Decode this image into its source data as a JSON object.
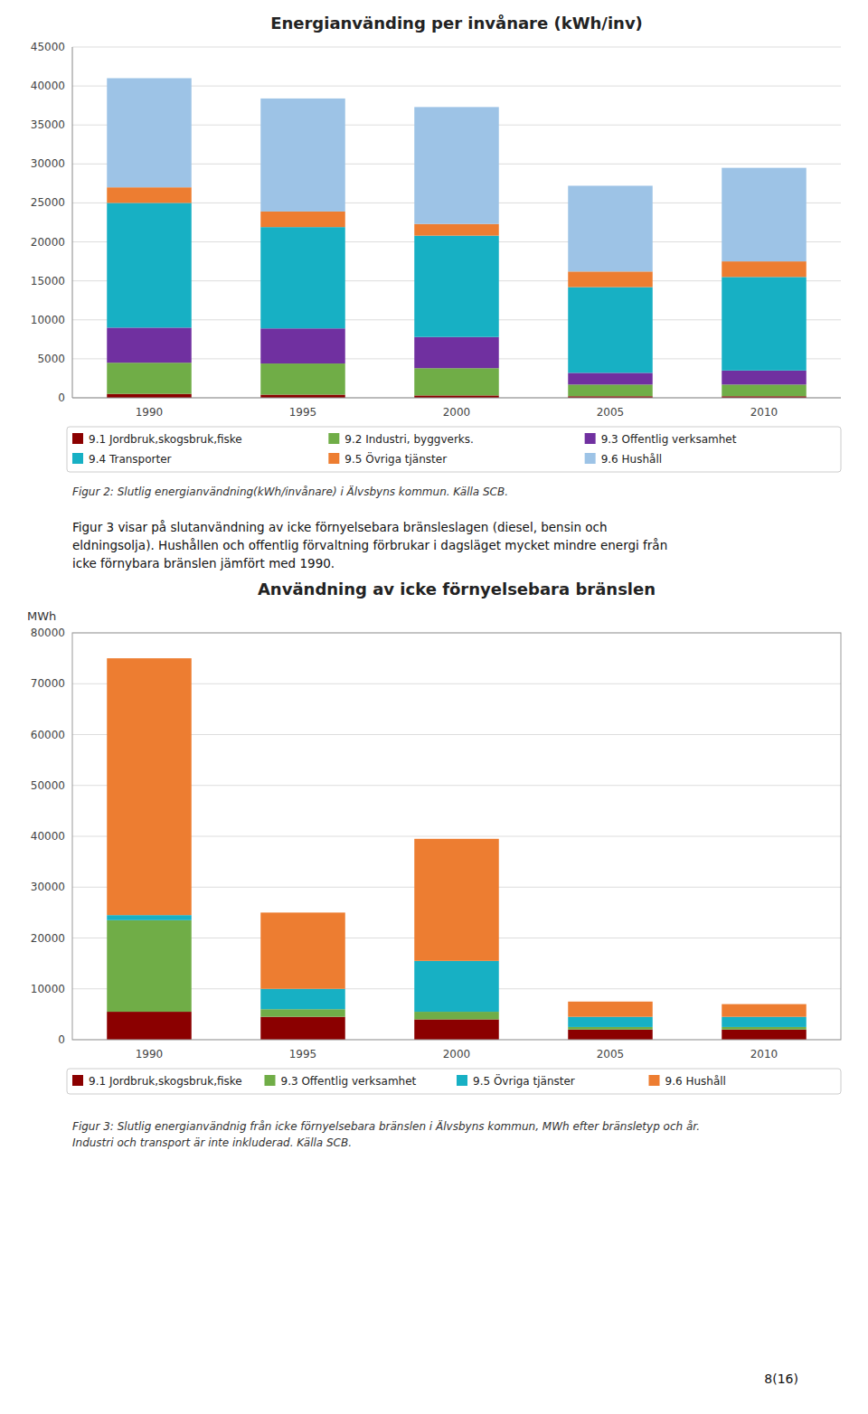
{
  "chart_data": [
    {
      "type": "bar",
      "stacked": true,
      "grid": true,
      "legend": "bottom",
      "title": "Energianvänding per invånare (kWh/inv)",
      "categories": [
        "1990",
        "1995",
        "2000",
        "2005",
        "2010"
      ],
      "series": [
        {
          "name": "9.1 Jordbruk,skogsbruk,fiske",
          "color": "#8B0000",
          "values": [
            500,
            400,
            300,
            200,
            200
          ]
        },
        {
          "name": "9.2 Industri, byggverks.",
          "color": "#70AD47",
          "values": [
            4000,
            4000,
            3500,
            1500,
            1500
          ]
        },
        {
          "name": "9.3 Offentlig verksamhet",
          "color": "#7030A0",
          "values": [
            4500,
            4500,
            4000,
            1500,
            1800
          ]
        },
        {
          "name": "9.4 Transporter",
          "color": "#17B0C4",
          "values": [
            16000,
            13000,
            13000,
            11000,
            12000
          ]
        },
        {
          "name": "9.5 Övriga tjänster",
          "color": "#ED7D31",
          "values": [
            2000,
            2000,
            1500,
            2000,
            2000
          ]
        },
        {
          "name": "9.6 Hushåll",
          "color": "#9DC3E6",
          "values": [
            14000,
            14500,
            15000,
            11000,
            12000
          ]
        }
      ],
      "ylim": [
        0,
        45000
      ],
      "yticks": [
        0,
        5000,
        10000,
        15000,
        20000,
        25000,
        30000,
        35000,
        40000,
        45000
      ],
      "caption": [
        "Figur 2: Slutlig energianvändning(kWh/invånare) i Älvsbyns kommun. Källa SCB."
      ]
    },
    {
      "type": "bar",
      "stacked": true,
      "grid": true,
      "legend": "bottom",
      "title": "Användning av icke förnyelsebara bränslen",
      "ylabel": "MWh",
      "categories": [
        "1990",
        "1995",
        "2000",
        "2005",
        "2010"
      ],
      "series": [
        {
          "name": "9.1 Jordbruk,skogsbruk,fiske",
          "color": "#8B0000",
          "values": [
            5500,
            4500,
            4000,
            2000,
            2000
          ]
        },
        {
          "name": "9.3 Offentlig verksamhet",
          "color": "#70AD47",
          "values": [
            18000,
            1500,
            1500,
            500,
            500
          ]
        },
        {
          "name": "9.5 Övriga tjänster",
          "color": "#17B0C4",
          "values": [
            1000,
            4000,
            10000,
            2000,
            2000
          ]
        },
        {
          "name": "9.6 Hushåll",
          "color": "#ED7D31",
          "values": [
            50500,
            15000,
            24000,
            3000,
            2500
          ]
        }
      ],
      "ylim": [
        0,
        80000
      ],
      "yticks": [
        0,
        10000,
        20000,
        30000,
        40000,
        50000,
        60000,
        70000,
        80000
      ],
      "caption": [
        "Figur 3: Slutlig energianvändnig från icke förnyelsebara bränslen i Älvsbyns kommun, MWh efter bränsletyp och år.",
        "Industri och transport är inte inkluderad. Källa SCB."
      ]
    }
  ],
  "text_body": [
    "Figur 3 visar på slutanvändning av icke förnyelsebara bränsleslagen (diesel, bensin och",
    "eldningsolja). Hushållen och offentlig förvaltning förbrukar i dagsläget mycket mindre energi från",
    "icke förnybara bränslen jämfört med 1990."
  ],
  "page_number": "8(16)"
}
